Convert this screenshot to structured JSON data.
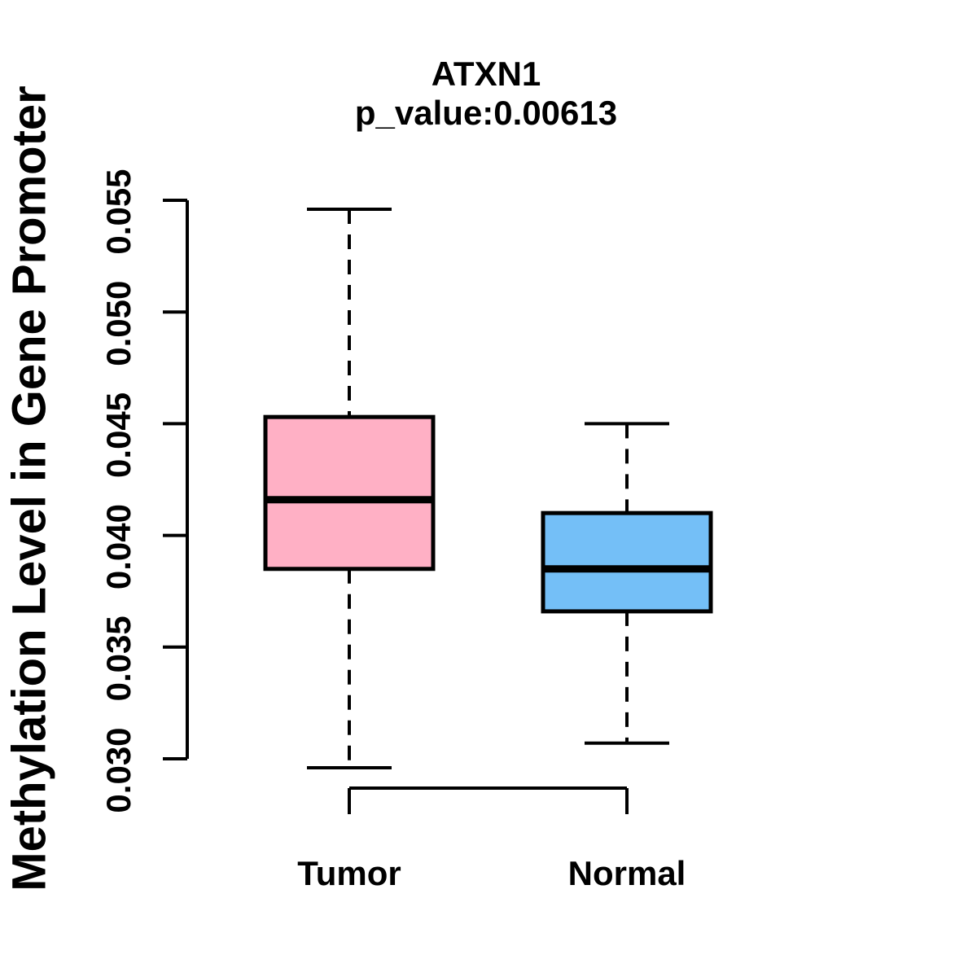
{
  "title": "ATXN1",
  "subtitle": "p_value:0.00613",
  "ylabel": "Methylation Level in Gene Promoter",
  "chart_data": {
    "type": "boxplot",
    "title": "ATXN1",
    "subtitle": "p_value:0.00613",
    "xlabel": "",
    "ylabel": "Methylation Level in Gene Promoter",
    "ylim": [
      0.03,
      0.055
    ],
    "yticks": [
      0.03,
      0.035,
      0.04,
      0.045,
      0.05,
      0.055
    ],
    "ytick_labels": [
      "0.030",
      "0.035",
      "0.040",
      "0.045",
      "0.050",
      "0.055"
    ],
    "grid": "off",
    "legend": "none",
    "whisker_style": "dashed",
    "axis_color": "#000000",
    "groups": [
      {
        "label": "Tumor",
        "fill_color": "#FFB0C5",
        "border_color": "#000000",
        "whisker_low": 0.0296,
        "q1": 0.0385,
        "median": 0.0416,
        "q3": 0.0453,
        "whisker_high": 0.0546
      },
      {
        "label": "Normal",
        "fill_color": "#74BFF7",
        "border_color": "#000000",
        "whisker_low": 0.0307,
        "q1": 0.0366,
        "median": 0.0385,
        "q3": 0.041,
        "whisker_high": 0.045
      }
    ]
  }
}
